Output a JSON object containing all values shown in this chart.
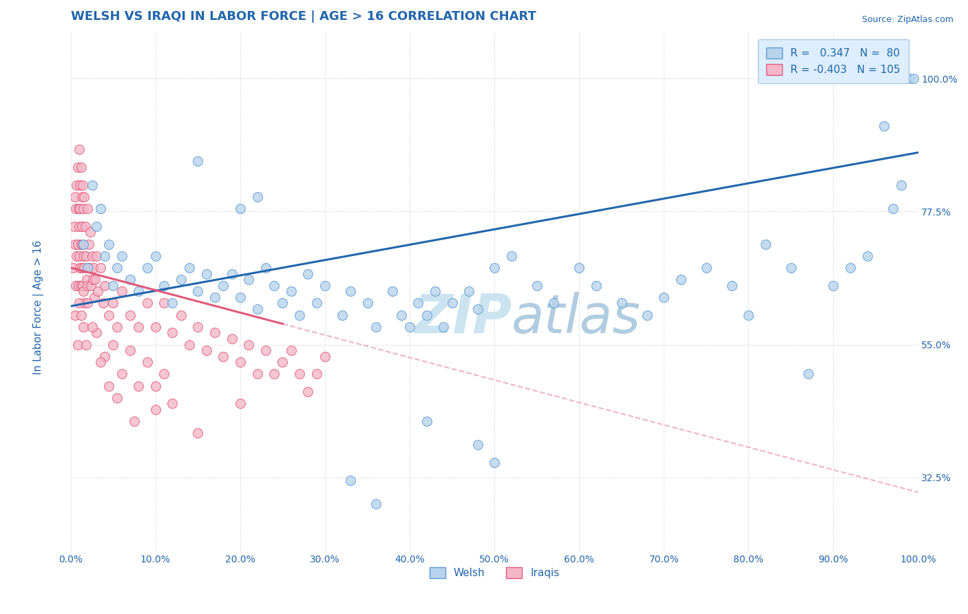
{
  "title": "WELSH VS IRAQI IN LABOR FORCE | AGE > 16 CORRELATION CHART",
  "source_text": "Source: ZipAtlas.com",
  "ylabel": "In Labor Force | Age > 16",
  "xlabel": "",
  "xlim": [
    0.0,
    100.0
  ],
  "ylim": [
    0.2,
    1.08
  ],
  "welsh_color": "#b8d4ec",
  "welsh_edge_color": "#5b9bd5",
  "iraqi_color": "#f4b8c8",
  "iraqi_edge_color": "#e05a7a",
  "welsh_R": 0.347,
  "welsh_N": 80,
  "iraqi_R": -0.403,
  "iraqi_N": 105,
  "trend_blue_color": "#2166ac",
  "trend_pink_color": "#e05a7a",
  "watermark_color": "#cce4f0",
  "title_color": "#2166ac",
  "tick_color": "#2166ac",
  "legend_box_color": "#ddeeff",
  "legend_box_edge": "#aac8e8",
  "background_color": "#ffffff",
  "grid_color": "#cccccc",
  "marker_size": 10,
  "welsh_blue_line_x0": 0.0,
  "welsh_blue_line_y0": 0.615,
  "welsh_blue_line_x1": 100.0,
  "welsh_blue_line_y1": 0.875,
  "iraqi_pink_line_x0": 0.0,
  "iraqi_pink_line_y0": 0.68,
  "iraqi_pink_line_x1": 25.0,
  "iraqi_pink_line_y1": 0.585,
  "iraqi_dash_line_x0": 25.0,
  "iraqi_dash_line_y0": 0.585,
  "iraqi_dash_line_x1": 100.0,
  "iraqi_dash_line_y1": 0.3,
  "welsh_points": [
    [
      1.5,
      0.72
    ],
    [
      2.0,
      0.68
    ],
    [
      2.5,
      0.82
    ],
    [
      3.0,
      0.75
    ],
    [
      3.5,
      0.78
    ],
    [
      4.0,
      0.7
    ],
    [
      4.5,
      0.72
    ],
    [
      5.0,
      0.65
    ],
    [
      5.5,
      0.68
    ],
    [
      6.0,
      0.7
    ],
    [
      7.0,
      0.66
    ],
    [
      8.0,
      0.64
    ],
    [
      9.0,
      0.68
    ],
    [
      10.0,
      0.7
    ],
    [
      11.0,
      0.65
    ],
    [
      12.0,
      0.62
    ],
    [
      13.0,
      0.66
    ],
    [
      14.0,
      0.68
    ],
    [
      15.0,
      0.64
    ],
    [
      16.0,
      0.67
    ],
    [
      17.0,
      0.63
    ],
    [
      18.0,
      0.65
    ],
    [
      19.0,
      0.67
    ],
    [
      20.0,
      0.63
    ],
    [
      21.0,
      0.66
    ],
    [
      22.0,
      0.61
    ],
    [
      23.0,
      0.68
    ],
    [
      24.0,
      0.65
    ],
    [
      25.0,
      0.62
    ],
    [
      26.0,
      0.64
    ],
    [
      27.0,
      0.6
    ],
    [
      28.0,
      0.67
    ],
    [
      29.0,
      0.62
    ],
    [
      30.0,
      0.65
    ],
    [
      32.0,
      0.6
    ],
    [
      33.0,
      0.64
    ],
    [
      35.0,
      0.62
    ],
    [
      36.0,
      0.58
    ],
    [
      38.0,
      0.64
    ],
    [
      39.0,
      0.6
    ],
    [
      40.0,
      0.58
    ],
    [
      41.0,
      0.62
    ],
    [
      42.0,
      0.6
    ],
    [
      43.0,
      0.64
    ],
    [
      44.0,
      0.58
    ],
    [
      45.0,
      0.62
    ],
    [
      47.0,
      0.64
    ],
    [
      48.0,
      0.61
    ],
    [
      50.0,
      0.68
    ],
    [
      15.0,
      0.86
    ],
    [
      20.0,
      0.78
    ],
    [
      22.0,
      0.8
    ],
    [
      52.0,
      0.7
    ],
    [
      55.0,
      0.65
    ],
    [
      57.0,
      0.62
    ],
    [
      60.0,
      0.68
    ],
    [
      62.0,
      0.65
    ],
    [
      65.0,
      0.62
    ],
    [
      68.0,
      0.6
    ],
    [
      70.0,
      0.63
    ],
    [
      72.0,
      0.66
    ],
    [
      75.0,
      0.68
    ],
    [
      78.0,
      0.65
    ],
    [
      80.0,
      0.6
    ],
    [
      82.0,
      0.72
    ],
    [
      85.0,
      0.68
    ],
    [
      87.0,
      0.5
    ],
    [
      90.0,
      0.65
    ],
    [
      92.0,
      0.68
    ],
    [
      94.0,
      0.7
    ],
    [
      96.0,
      0.92
    ],
    [
      97.0,
      0.78
    ],
    [
      98.0,
      0.82
    ],
    [
      99.0,
      1.0
    ],
    [
      99.5,
      1.0
    ],
    [
      33.0,
      0.32
    ],
    [
      36.0,
      0.28
    ],
    [
      42.0,
      0.42
    ],
    [
      48.0,
      0.38
    ],
    [
      50.0,
      0.35
    ]
  ],
  "iraqi_points": [
    [
      0.3,
      0.68
    ],
    [
      0.4,
      0.75
    ],
    [
      0.5,
      0.72
    ],
    [
      0.5,
      0.8
    ],
    [
      0.6,
      0.78
    ],
    [
      0.6,
      0.65
    ],
    [
      0.7,
      0.82
    ],
    [
      0.7,
      0.7
    ],
    [
      0.8,
      0.85
    ],
    [
      0.8,
      0.72
    ],
    [
      0.9,
      0.78
    ],
    [
      0.9,
      0.65
    ],
    [
      1.0,
      0.88
    ],
    [
      1.0,
      0.75
    ],
    [
      1.0,
      0.7
    ],
    [
      1.1,
      0.82
    ],
    [
      1.1,
      0.68
    ],
    [
      1.1,
      0.78
    ],
    [
      1.2,
      0.85
    ],
    [
      1.2,
      0.72
    ],
    [
      1.2,
      0.65
    ],
    [
      1.3,
      0.8
    ],
    [
      1.3,
      0.75
    ],
    [
      1.3,
      0.68
    ],
    [
      1.4,
      0.82
    ],
    [
      1.4,
      0.72
    ],
    [
      1.4,
      0.65
    ],
    [
      1.5,
      0.78
    ],
    [
      1.5,
      0.7
    ],
    [
      1.5,
      0.64
    ],
    [
      1.6,
      0.8
    ],
    [
      1.6,
      0.68
    ],
    [
      1.6,
      0.62
    ],
    [
      1.7,
      0.75
    ],
    [
      1.8,
      0.7
    ],
    [
      1.9,
      0.66
    ],
    [
      2.0,
      0.78
    ],
    [
      2.0,
      0.65
    ],
    [
      2.1,
      0.72
    ],
    [
      2.2,
      0.68
    ],
    [
      2.3,
      0.74
    ],
    [
      2.4,
      0.65
    ],
    [
      2.5,
      0.7
    ],
    [
      2.6,
      0.66
    ],
    [
      2.7,
      0.68
    ],
    [
      2.8,
      0.63
    ],
    [
      2.9,
      0.66
    ],
    [
      3.0,
      0.7
    ],
    [
      3.2,
      0.64
    ],
    [
      3.5,
      0.68
    ],
    [
      3.8,
      0.62
    ],
    [
      4.0,
      0.65
    ],
    [
      4.5,
      0.6
    ],
    [
      5.0,
      0.62
    ],
    [
      5.5,
      0.58
    ],
    [
      6.0,
      0.64
    ],
    [
      7.0,
      0.6
    ],
    [
      8.0,
      0.58
    ],
    [
      9.0,
      0.62
    ],
    [
      10.0,
      0.58
    ],
    [
      11.0,
      0.62
    ],
    [
      12.0,
      0.57
    ],
    [
      13.0,
      0.6
    ],
    [
      14.0,
      0.55
    ],
    [
      15.0,
      0.58
    ],
    [
      16.0,
      0.54
    ],
    [
      17.0,
      0.57
    ],
    [
      18.0,
      0.53
    ],
    [
      19.0,
      0.56
    ],
    [
      20.0,
      0.52
    ],
    [
      21.0,
      0.55
    ],
    [
      22.0,
      0.5
    ],
    [
      23.0,
      0.54
    ],
    [
      24.0,
      0.5
    ],
    [
      25.0,
      0.52
    ],
    [
      26.0,
      0.54
    ],
    [
      27.0,
      0.5
    ],
    [
      28.0,
      0.47
    ],
    [
      29.0,
      0.5
    ],
    [
      30.0,
      0.53
    ],
    [
      0.5,
      0.6
    ],
    [
      1.0,
      0.62
    ],
    [
      1.5,
      0.58
    ],
    [
      2.0,
      0.62
    ],
    [
      3.0,
      0.57
    ],
    [
      4.0,
      0.53
    ],
    [
      5.0,
      0.55
    ],
    [
      6.0,
      0.5
    ],
    [
      7.0,
      0.54
    ],
    [
      8.0,
      0.48
    ],
    [
      9.0,
      0.52
    ],
    [
      10.0,
      0.48
    ],
    [
      11.0,
      0.5
    ],
    [
      12.0,
      0.45
    ],
    [
      0.8,
      0.55
    ],
    [
      1.2,
      0.6
    ],
    [
      1.8,
      0.55
    ],
    [
      2.5,
      0.58
    ],
    [
      3.5,
      0.52
    ],
    [
      4.5,
      0.48
    ],
    [
      5.5,
      0.46
    ],
    [
      7.5,
      0.42
    ],
    [
      10.0,
      0.44
    ],
    [
      15.0,
      0.4
    ],
    [
      20.0,
      0.45
    ]
  ]
}
